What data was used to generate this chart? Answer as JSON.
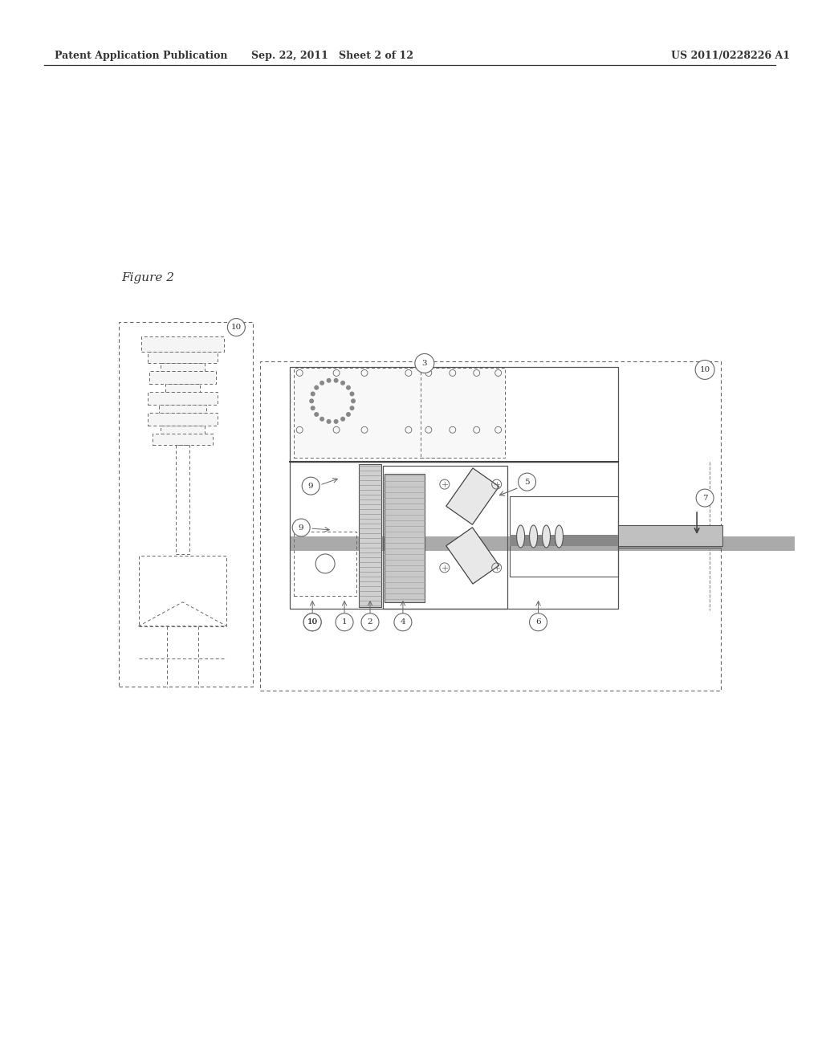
{
  "background_color": "#ffffff",
  "header_left": "Patent Application Publication",
  "header_center": "Sep. 22, 2011   Sheet 2 of 12",
  "header_right": "US 2011/0228226 A1",
  "figure_label": "Figure 2",
  "lc": "#666666",
  "dc": "#333333",
  "lc2": "#999999"
}
